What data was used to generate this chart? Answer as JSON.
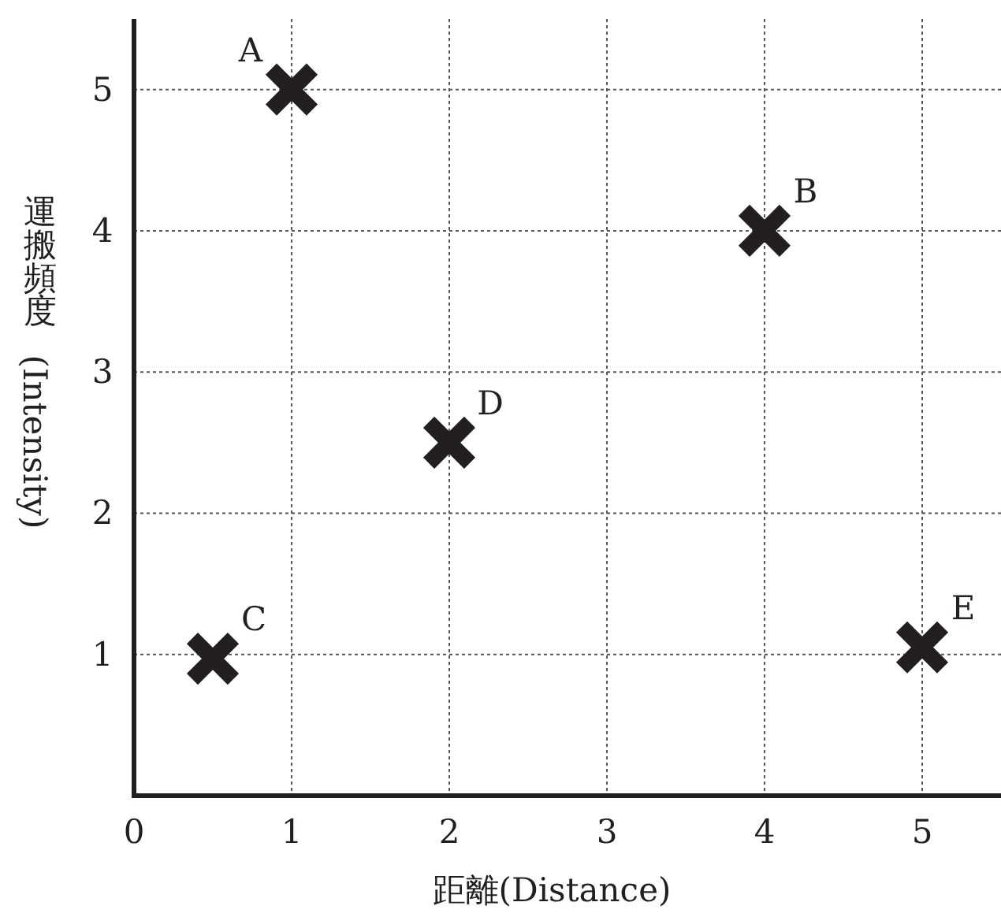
{
  "chart_data": {
    "type": "scatter",
    "xlabel": "距離(Distance)",
    "ylabel": "運搬頻度(Intensity)",
    "x": [
      1,
      4,
      0.5,
      2,
      5
    ],
    "values": [
      5,
      4,
      0.97,
      2.5,
      1.05
    ],
    "color": "#231f20",
    "marker": "cross",
    "xlim": [
      0,
      5.5
    ],
    "ylim": [
      0,
      5.5
    ],
    "xticks": [
      0,
      1,
      2,
      3,
      4,
      5
    ],
    "yticks": [
      1,
      2,
      3,
      4,
      5
    ],
    "grid": true,
    "annotations": [
      {
        "text": "A",
        "x": 1,
        "y": 5
      },
      {
        "text": "B",
        "x": 4,
        "y": 4
      },
      {
        "text": "C",
        "x": 0.5,
        "y": 0.97
      },
      {
        "text": "D",
        "x": 2,
        "y": 2.5
      },
      {
        "text": "E",
        "x": 5,
        "y": 1.05
      }
    ]
  }
}
